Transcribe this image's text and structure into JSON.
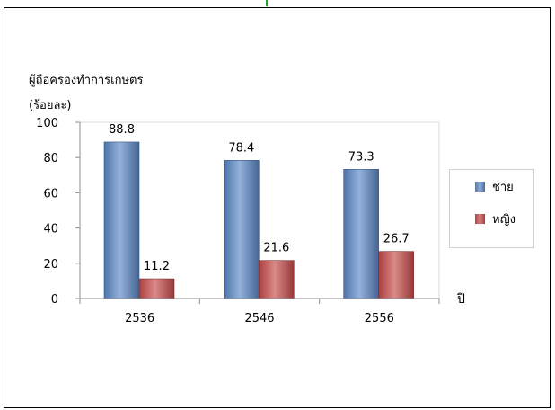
{
  "chart_data": {
    "type": "bar",
    "ylabel": "ผู้ถือครองทำการเกษตร",
    "yunit": "(ร้อยละ)",
    "xlabel": "ปี",
    "categories": [
      "2536",
      "2546",
      "2556"
    ],
    "series": [
      {
        "name": "ชาย",
        "values": [
          88.8,
          78.4,
          73.3
        ],
        "color": "#5b87c7"
      },
      {
        "name": "หญิง",
        "values": [
          11.2,
          21.6,
          26.7
        ],
        "color": "#c84a4a"
      }
    ],
    "ylim": [
      0,
      100
    ],
    "yticks": [
      0,
      20,
      40,
      60,
      80,
      100
    ],
    "grid": false,
    "legend_position": "right"
  }
}
